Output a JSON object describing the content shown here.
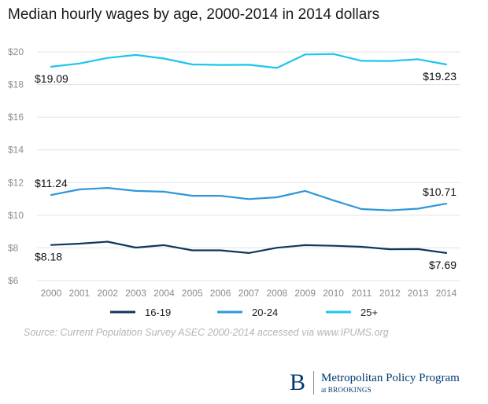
{
  "title": "Median hourly wages by age, 2000-2014 in 2014 dollars",
  "source": "Source: Current Population Survey ASEC 2000-2014 accessed via www.IPUMS.org",
  "brand": {
    "logo_letter": "B",
    "name": "Metropolitan Policy Program",
    "sub_prefix": "at",
    "sub_org": "BROOKINGS"
  },
  "chart_data": {
    "type": "line",
    "title": "Median hourly wages by age, 2000-2014 in 2014 dollars",
    "xlabel": "",
    "ylabel": "",
    "x": [
      "2000",
      "2001",
      "2002",
      "2003",
      "2004",
      "2005",
      "2006",
      "2007",
      "2008",
      "2009",
      "2010",
      "2011",
      "2012",
      "2013",
      "2014"
    ],
    "ylim": [
      6,
      20
    ],
    "yticks": [
      6,
      8,
      10,
      12,
      14,
      16,
      18,
      20
    ],
    "ytick_labels": [
      "$6",
      "$8",
      "$10",
      "$12",
      "$14",
      "$16",
      "$18",
      "$20"
    ],
    "grid": true,
    "legend_position": "bottom",
    "series": [
      {
        "name": "16-19",
        "color": "#12365f",
        "values": [
          8.18,
          8.26,
          8.38,
          8.02,
          8.17,
          7.85,
          7.85,
          7.69,
          8.01,
          8.17,
          8.13,
          8.07,
          7.92,
          7.93,
          7.69
        ]
      },
      {
        "name": "20-24",
        "color": "#2e97db",
        "values": [
          11.24,
          11.58,
          11.67,
          11.49,
          11.44,
          11.19,
          11.19,
          10.99,
          11.1,
          11.49,
          10.91,
          10.38,
          10.3,
          10.4,
          10.71
        ]
      },
      {
        "name": "25+",
        "color": "#1bc6ee",
        "values": [
          19.09,
          19.29,
          19.63,
          19.81,
          19.59,
          19.23,
          19.2,
          19.21,
          19.02,
          19.84,
          19.87,
          19.45,
          19.44,
          19.55,
          19.23
        ]
      }
    ],
    "annotations": [
      {
        "text": "$19.09",
        "series": "25+",
        "x": "2000",
        "y": 19.09
      },
      {
        "text": "$19.23",
        "series": "25+",
        "x": "2014",
        "y": 19.23
      },
      {
        "text": "$11.24",
        "series": "20-24",
        "x": "2000",
        "y": 11.24
      },
      {
        "text": "$10.71",
        "series": "20-24",
        "x": "2014",
        "y": 10.71
      },
      {
        "text": "$8.18",
        "series": "16-19",
        "x": "2000",
        "y": 8.18
      },
      {
        "text": "$7.69",
        "series": "16-19",
        "x": "2014",
        "y": 7.69
      }
    ]
  }
}
